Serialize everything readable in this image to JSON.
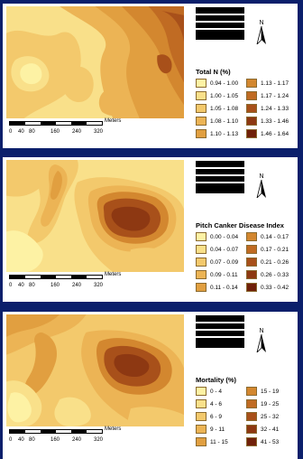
{
  "north_letter": "N",
  "scale_unit": "Meters",
  "scale_ticks": [
    "0",
    "40",
    "80",
    "160",
    "240",
    "320"
  ],
  "colors": {
    "c1": "#fdf2a4",
    "c2": "#f9e08a",
    "c3": "#f3c96c",
    "c4": "#ecb455",
    "c5": "#e19f40",
    "c6": "#d3872f",
    "c7": "#c06b23",
    "c8": "#a8501a",
    "c9": "#8d3812",
    "c10": "#70200a"
  },
  "panels": [
    {
      "legend_title": "Total N (%)",
      "classes": [
        "0.94 - 1.00",
        "1.00 - 1.05",
        "1.05 - 1.08",
        "1.08 - 1.10",
        "1.10 - 1.13",
        "1.13 - 1.17",
        "1.17 - 1.24",
        "1.24 - 1.33",
        "1.33 - 1.46",
        "1.46 - 1.64"
      ]
    },
    {
      "legend_title": "Pitch Canker Disease Index",
      "classes": [
        "0.00 - 0.04",
        "0.04 - 0.07",
        "0.07 - 0.09",
        "0.09 - 0.11",
        "0.11 - 0.14",
        "0.14 - 0.17",
        "0.17 - 0.21",
        "0.21 - 0.26",
        "0.26 - 0.33",
        "0.33 - 0.42"
      ]
    },
    {
      "legend_title": "Mortality (%)",
      "classes": [
        "0 - 4",
        "4 - 6",
        "6 - 9",
        "9 - 11",
        "11 - 15",
        "15 - 19",
        "19 - 25",
        "25 - 32",
        "32 - 41",
        "41 - 53"
      ]
    }
  ]
}
